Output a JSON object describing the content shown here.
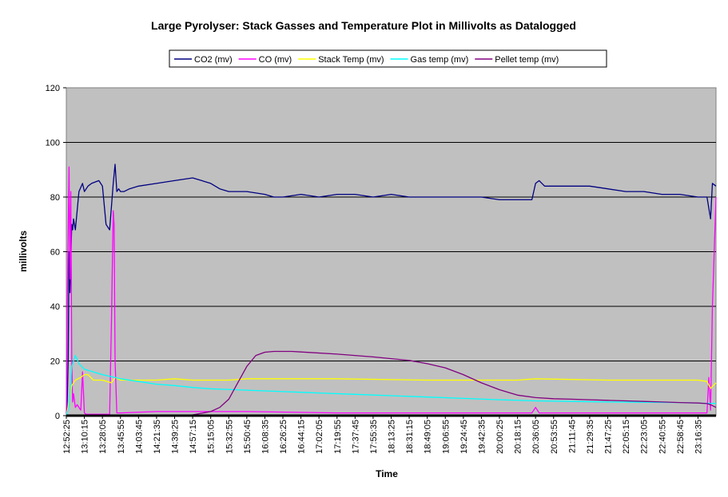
{
  "chart_data": {
    "type": "line",
    "title": "Large Pyrolyser:  Stack Gasses and Temperature Plot in  Millivolts as Datalogged",
    "xlabel": "Time",
    "ylabel": "millivolts",
    "ylim": [
      0,
      120
    ],
    "yticks": [
      "0",
      "20",
      "40",
      "60",
      "80",
      "100",
      "120"
    ],
    "grid": true,
    "plot_background": "#c0c0c0",
    "legend_position": "top",
    "categories": [
      "12:52:25",
      "13:10:15",
      "13:28:05",
      "13:45:55",
      "14:03:45",
      "14:21:35",
      "14:39:25",
      "14:57:15",
      "15:15:05",
      "15:32:55",
      "15:50:45",
      "16:08:35",
      "16:26:25",
      "16:44:15",
      "17:02:05",
      "17:19:55",
      "17:37:45",
      "17:55:35",
      "18:13:25",
      "18:31:15",
      "18:49:05",
      "19:06:55",
      "19:24:45",
      "19:42:35",
      "20:00:25",
      "20:18:15",
      "20:36:05",
      "20:53:55",
      "21:11:45",
      "21:29:35",
      "21:47:25",
      "22:05:15",
      "22:23:05",
      "22:40:55",
      "22:58:45",
      "23:16:35"
    ],
    "series": [
      {
        "name": "CO2 (mv)",
        "color": "#000080",
        "x": [
          0,
          0.05,
          0.1,
          0.15,
          0.2,
          0.3,
          0.35,
          0.4,
          0.5,
          0.7,
          0.9,
          1.0,
          1.2,
          1.4,
          1.8,
          2.0,
          2.2,
          2.4,
          2.6,
          2.7,
          2.8,
          2.9,
          3.0,
          3.2,
          3.5,
          4,
          5,
          6,
          7,
          7.5,
          8,
          8.5,
          9,
          10,
          11,
          11.5,
          12,
          13,
          14,
          15,
          16,
          17,
          18,
          19,
          20,
          21,
          22,
          23,
          24,
          25,
          25.8,
          26,
          26.2,
          26.5,
          27,
          28,
          29,
          30,
          31,
          32,
          33,
          34,
          35,
          35.5,
          35.7,
          35.8,
          36
        ],
        "values": [
          0,
          5,
          20,
          60,
          45,
          70,
          68,
          72,
          68,
          82,
          85,
          82,
          84,
          85,
          86,
          84,
          70,
          68,
          85,
          92,
          82,
          83,
          82,
          82,
          83,
          84,
          85,
          86,
          87,
          86,
          85,
          83,
          82,
          82,
          81,
          80,
          80,
          81,
          80,
          81,
          81,
          80,
          81,
          80,
          80,
          80,
          80,
          80,
          79,
          79,
          79,
          85,
          86,
          84,
          84,
          84,
          84,
          83,
          82,
          82,
          81,
          81,
          80,
          80,
          72,
          85,
          84
        ]
      },
      {
        "name": "CO (mv)",
        "color": "#ff00ff",
        "x": [
          0,
          0.05,
          0.15,
          0.2,
          0.25,
          0.3,
          0.35,
          0.4,
          0.5,
          0.6,
          0.8,
          0.9,
          1.0,
          1.1,
          1.2,
          1.5,
          2.0,
          2.4,
          2.5,
          2.6,
          2.65,
          2.7,
          2.8,
          3,
          5,
          10,
          15,
          20,
          25,
          25.8,
          26,
          26.2,
          26.5,
          30,
          35,
          35.5,
          35.6,
          35.7,
          35.8,
          36
        ],
        "values": [
          0,
          40,
          91,
          50,
          82,
          20,
          5,
          8,
          3,
          4,
          2,
          16,
          1,
          0.5,
          0.5,
          0.5,
          0.5,
          0.5,
          35,
          75,
          70,
          20,
          1,
          1,
          1.5,
          1.5,
          1,
          1,
          1,
          1,
          3,
          1,
          1,
          1,
          1,
          1,
          14,
          2,
          40,
          80
        ]
      },
      {
        "name": "Stack Temp (mv)",
        "color": "#ffff00",
        "x": [
          0,
          0.15,
          0.3,
          0.5,
          0.8,
          1.0,
          1.2,
          1.5,
          2.0,
          2.5,
          2.7,
          3,
          4,
          5,
          6,
          7,
          8,
          9,
          10,
          15,
          20,
          25,
          26,
          30,
          35,
          35.5,
          35.7,
          36
        ],
        "values": [
          0,
          5,
          11,
          13,
          14,
          15,
          15,
          13,
          13,
          12,
          14,
          13,
          13,
          13,
          13.5,
          13,
          13,
          13,
          13.5,
          13.5,
          13,
          13,
          13.5,
          13,
          13,
          12.5,
          10,
          12
        ]
      },
      {
        "name": "Gas temp (mv)",
        "color": "#00ffff",
        "x": [
          0,
          0.15,
          0.3,
          0.5,
          0.7,
          1.0,
          1.5,
          2,
          3,
          4,
          5,
          6,
          7,
          8,
          10,
          12,
          14,
          16,
          18,
          20,
          22,
          24,
          26,
          28,
          30,
          32,
          34,
          35.5,
          36
        ],
        "values": [
          0,
          3,
          18,
          22,
          19,
          17,
          16,
          15,
          13.5,
          12.5,
          11.5,
          11,
          10.3,
          9.8,
          9.3,
          8.8,
          8.3,
          7.8,
          7.3,
          6.8,
          6.3,
          5.8,
          5.4,
          5.2,
          5,
          4.9,
          4.8,
          4.5,
          4.5
        ]
      },
      {
        "name": "Pellet temp (mv)",
        "color": "#800080",
        "x": [
          0,
          6,
          7,
          8,
          8.5,
          9,
          9.5,
          10,
          10.5,
          11,
          11.5,
          12,
          12.5,
          13,
          15,
          17,
          19,
          20,
          21,
          22,
          23,
          24,
          25,
          26,
          27,
          28,
          29,
          30,
          31,
          32,
          33,
          34,
          35,
          35.5,
          35.7,
          36
        ],
        "values": [
          0,
          0,
          0.3,
          1.5,
          3,
          6,
          12,
          18,
          22,
          23.2,
          23.5,
          23.5,
          23.5,
          23.3,
          22.5,
          21.5,
          20.2,
          19,
          17.5,
          15,
          12,
          9.5,
          7.5,
          6.6,
          6.2,
          6,
          5.8,
          5.6,
          5.4,
          5.2,
          5,
          4.8,
          4.6,
          4.4,
          4,
          3
        ]
      }
    ]
  }
}
